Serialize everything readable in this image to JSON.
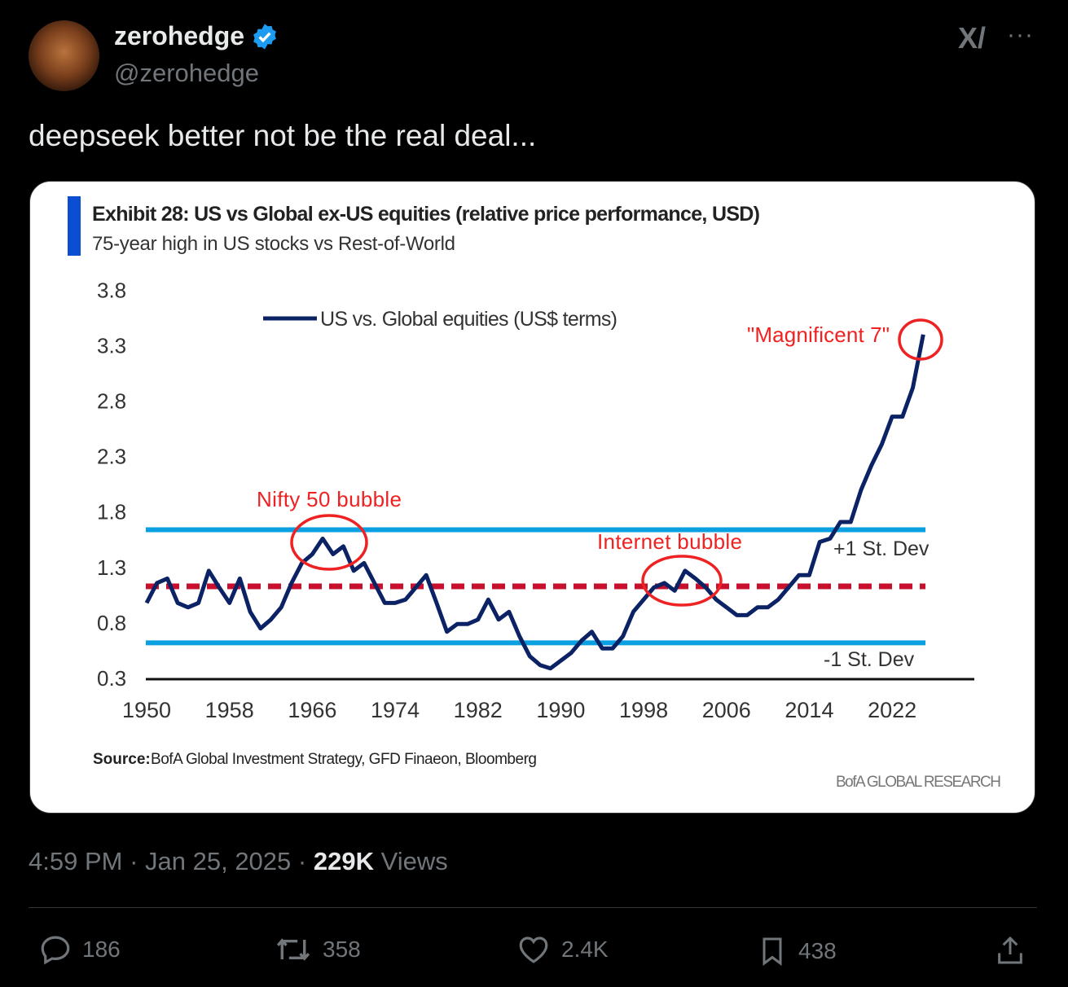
{
  "author": {
    "name": "zerohedge",
    "handle": "@zerohedge",
    "verified": true
  },
  "header_icons": [
    "grok-icon",
    "more-icon"
  ],
  "tweet_text": "deepseek better not be the real deal...",
  "chart_data": {
    "type": "line",
    "title": "Exhibit 28: US vs Global ex-US equities (relative price performance, USD)",
    "subtitle": "75-year high in US stocks vs Rest-of-World",
    "legend": "US vs. Global equities (US$ terms)",
    "legend_placement": "top-center",
    "xlabel": "",
    "ylabel": "",
    "ylim": [
      0.3,
      3.8
    ],
    "xlim": [
      1950,
      2025
    ],
    "y_ticks": [
      "3.8",
      "3.3",
      "2.8",
      "2.3",
      "1.8",
      "1.3",
      "0.8",
      "0.3"
    ],
    "x_ticks": [
      "1950",
      "1958",
      "1966",
      "1974",
      "1982",
      "1990",
      "1998",
      "2006",
      "2014",
      "2022"
    ],
    "x": [
      1950,
      1951,
      1952,
      1953,
      1954,
      1955,
      1956,
      1957,
      1958,
      1959,
      1960,
      1961,
      1962,
      1963,
      1964,
      1965,
      1966,
      1967,
      1968,
      1969,
      1970,
      1971,
      1972,
      1973,
      1974,
      1975,
      1976,
      1977,
      1978,
      1979,
      1980,
      1981,
      1982,
      1983,
      1984,
      1985,
      1986,
      1987,
      1988,
      1989,
      1990,
      1991,
      1992,
      1993,
      1994,
      1995,
      1996,
      1997,
      1998,
      1999,
      2000,
      2001,
      2002,
      2003,
      2004,
      2005,
      2006,
      2007,
      2008,
      2009,
      2010,
      2011,
      2012,
      2013,
      2014,
      2015,
      2016,
      2017,
      2018,
      2019,
      2020,
      2021,
      2022,
      2023,
      2024,
      2025
    ],
    "series": [
      {
        "name": "US vs. Global equities (US$ terms)",
        "color": "#0b2265",
        "values": [
          0.98,
          1.16,
          1.2,
          0.98,
          0.94,
          0.98,
          1.27,
          1.12,
          0.98,
          1.2,
          0.9,
          0.75,
          0.83,
          0.94,
          1.16,
          1.34,
          1.42,
          1.56,
          1.42,
          1.49,
          1.27,
          1.34,
          1.16,
          0.98,
          0.98,
          1.01,
          1.12,
          1.23,
          0.98,
          0.72,
          0.79,
          0.79,
          0.83,
          1.01,
          0.83,
          0.9,
          0.68,
          0.5,
          0.42,
          0.39,
          0.46,
          0.53,
          0.64,
          0.72,
          0.57,
          0.57,
          0.68,
          0.9,
          1.01,
          1.12,
          1.16,
          1.09,
          1.27,
          1.2,
          1.12,
          1.01,
          0.94,
          0.87,
          0.87,
          0.94,
          0.94,
          1.01,
          1.12,
          1.23,
          1.23,
          1.53,
          1.56,
          1.71,
          1.71,
          2.0,
          2.22,
          2.41,
          2.66,
          2.66,
          2.92,
          3.4
        ]
      }
    ],
    "reference_lines": [
      {
        "name": "+1 St. Dev",
        "value": 1.64,
        "color": "#0a9fe0"
      },
      {
        "name": "mean",
        "value": 1.13,
        "color": "#c8102e",
        "style": "dashed"
      },
      {
        "name": "-1 St. Dev",
        "value": 0.62,
        "color": "#0a9fe0"
      }
    ],
    "annotations": [
      {
        "text": "Nifty 50 bubble",
        "x": 1967,
        "y": 1.5
      },
      {
        "text": "Internet bubble",
        "x": 2002,
        "y": 1.2
      },
      {
        "text": "\"Magnificent 7\"",
        "x": 2025,
        "y": 3.35
      }
    ],
    "labels": {
      "plus_sd": "+1 St. Dev",
      "minus_sd": "-1 St. Dev"
    },
    "source_label": "Source:",
    "source": "BofA Global Investment Strategy, GFD Finaeon, Bloomberg",
    "brand": "BofA GLOBAL RESEARCH",
    "grid": false
  },
  "meta": {
    "time": "4:59 PM",
    "date": "Jan 25, 2025",
    "views": "229K",
    "views_label": "Views"
  },
  "actions": {
    "replies": "186",
    "reposts": "358",
    "likes": "2.4K",
    "bookmarks": "438"
  },
  "colors": {
    "accent": "#1d9bf0",
    "muted": "#71767b"
  }
}
